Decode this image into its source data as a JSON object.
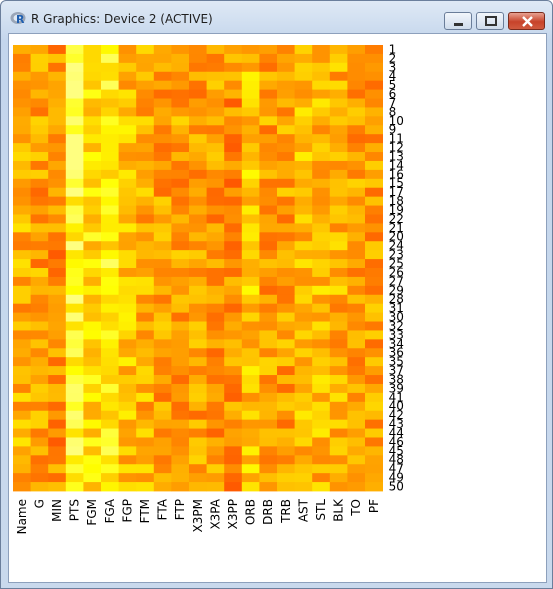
{
  "window": {
    "title": "R Graphics: Device 2 (ACTIVE)"
  },
  "icons": {
    "app": "r-logo-icon",
    "minimize": "minimize-icon",
    "maximize": "maximize-icon",
    "close": "close-icon"
  },
  "chart_data": {
    "type": "heatmap",
    "columns": [
      "Name",
      "G",
      "MIN",
      "PTS",
      "FGM",
      "FGA",
      "FGP",
      "FTM",
      "FTA",
      "FTP",
      "X3PM",
      "X3PA",
      "X3PP",
      "ORB",
      "DRB",
      "TRB",
      "AST",
      "STL",
      "BLK",
      "TO",
      "PF"
    ],
    "rows": [
      "1",
      "2",
      "3",
      "4",
      "5",
      "6",
      "7",
      "8",
      "10",
      "9",
      "11",
      "12",
      "13",
      "14",
      "16",
      "15",
      "17",
      "18",
      "19",
      "22",
      "21",
      "20",
      "24",
      "23",
      "25",
      "26",
      "27",
      "29",
      "28",
      "31",
      "30",
      "32",
      "33",
      "34",
      "36",
      "35",
      "37",
      "38",
      "39",
      "41",
      "40",
      "42",
      "43",
      "44",
      "46",
      "45",
      "48",
      "47",
      "49",
      "50"
    ],
    "color_scale": [
      "#ff0000",
      "#ff4000",
      "#ff8000",
      "#ffbf00",
      "#ffff00",
      "#ffff80"
    ],
    "legend": "none"
  }
}
